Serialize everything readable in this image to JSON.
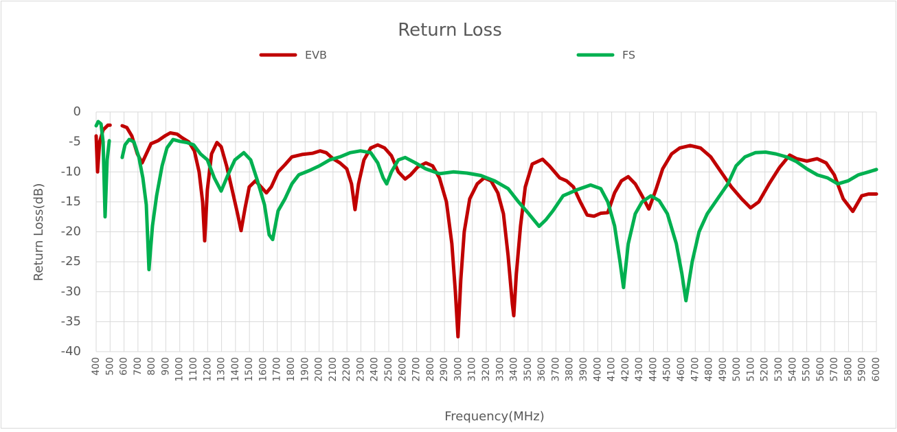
{
  "chart_data": {
    "type": "line",
    "title": "Return Loss",
    "xlabel": "Frequency(MHz)",
    "ylabel": "Return Loss(dB)",
    "legend": "top",
    "grid": true,
    "xlim": [
      400,
      6000
    ],
    "ylim": [
      -40,
      0
    ],
    "xticks": [
      400,
      500,
      600,
      700,
      800,
      900,
      1000,
      1100,
      1200,
      1300,
      1400,
      1500,
      1600,
      1700,
      1800,
      1900,
      2000,
      2100,
      2200,
      2300,
      2400,
      2500,
      2600,
      2700,
      2800,
      2900,
      3000,
      3100,
      3200,
      3300,
      3400,
      3500,
      3600,
      3700,
      3800,
      3900,
      4000,
      4100,
      4200,
      4300,
      4400,
      4500,
      4600,
      4700,
      4800,
      4900,
      5000,
      5100,
      5200,
      5300,
      5400,
      5500,
      5600,
      5700,
      5800,
      5900,
      6000
    ],
    "yticks": [
      0,
      -5,
      -10,
      -15,
      -20,
      -25,
      -30,
      -35,
      -40
    ],
    "series": [
      {
        "name": "EVB",
        "color": "#c00000",
        "x": [
          400,
          410,
          425,
          450,
          485,
          500,
          550,
          587,
          620,
          656,
          696,
          730,
          760,
          794,
          843,
          893,
          932,
          981,
          1016,
          1065,
          1105,
          1139,
          1164,
          1179,
          1198,
          1228,
          1267,
          1297,
          1336,
          1376,
          1415,
          1440,
          1469,
          1499,
          1543,
          1583,
          1622,
          1657,
          1706,
          1755,
          1805,
          1878,
          1952,
          2007,
          2051,
          2100,
          2150,
          2199,
          2233,
          2258,
          2283,
          2322,
          2371,
          2421,
          2470,
          2519,
          2569,
          2618,
          2657,
          2707,
          2766,
          2815,
          2864,
          2914,
          2953,
          2978,
          2997,
          3017,
          3042,
          3081,
          3135,
          3185,
          3234,
          3283,
          3323,
          3357,
          3387,
          3397,
          3416,
          3446,
          3480,
          3530,
          3604,
          3653,
          3727,
          3776,
          3825,
          3875,
          3924,
          3973,
          4022,
          4072,
          4121,
          4170,
          4219,
          4269,
          4318,
          4367,
          4417,
          4466,
          4530,
          4589,
          4663,
          4737,
          4811,
          4885,
          4959,
          5033,
          5097,
          5156,
          5230,
          5304,
          5378,
          5427,
          5501,
          5575,
          5639,
          5698,
          5762,
          5831,
          5895,
          5944,
          6000
        ],
        "values": [
          -4,
          -10,
          -5,
          -3,
          -2.2,
          -2.2,
          null,
          -2.3,
          -2.6,
          -4,
          -7,
          -8.5,
          -7,
          -5.3,
          -4.8,
          -4,
          -3.5,
          -3.7,
          -4.3,
          -5,
          -6.5,
          -10,
          -15,
          -21.5,
          -13,
          -7,
          -5.1,
          -5.8,
          -9,
          -13,
          -17,
          -19.8,
          -16,
          -12.5,
          -11.5,
          -12.5,
          -13.5,
          -12.5,
          -10,
          -8.8,
          -7.5,
          -7.1,
          -6.9,
          -6.5,
          -6.8,
          -7.8,
          -8.5,
          -9.5,
          -12,
          -16.3,
          -12,
          -8,
          -6,
          -5.5,
          -6,
          -7.3,
          -10,
          -11.2,
          -10.5,
          -9.2,
          -8.5,
          -9,
          -11,
          -15,
          -22,
          -30,
          -37.5,
          -28,
          -20,
          -14.5,
          -12,
          -11,
          -11.5,
          -13.5,
          -17,
          -24,
          -32,
          -34,
          -27,
          -19,
          -12.5,
          -8.7,
          -7.9,
          -9,
          -11,
          -11.5,
          -12.5,
          -15,
          -17.2,
          -17.4,
          -16.9,
          -16.8,
          -13.5,
          -11.5,
          -10.8,
          -12,
          -14,
          -16.2,
          -13,
          -9.5,
          -7,
          -6,
          -5.6,
          -6,
          -7.5,
          -10,
          -12.5,
          -14.5,
          -16,
          -15,
          -12,
          -9.3,
          -7.2,
          -7.8,
          -8.2,
          -7.8,
          -8.5,
          -10.5,
          -14.5,
          -16.6,
          -14,
          -13.7,
          -13.7
        ]
      },
      {
        "name": "FS",
        "color": "#00b050",
        "x": [
          400,
          415,
          435,
          450,
          464,
          479,
          494,
          540,
          587,
          607,
          637,
          671,
          706,
          735,
          760,
          779,
          804,
          834,
          873,
          908,
          952,
          1001,
          1051,
          1100,
          1149,
          1198,
          1248,
          1297,
          1346,
          1396,
          1460,
          1509,
          1558,
          1608,
          1642,
          1667,
          1706,
          1755,
          1805,
          1854,
          1928,
          2002,
          2076,
          2150,
          2223,
          2297,
          2371,
          2421,
          2460,
          2485,
          2519,
          2569,
          2618,
          2692,
          2766,
          2864,
          2963,
          3061,
          3160,
          3259,
          3357,
          3431,
          3505,
          3579,
          3628,
          3678,
          3751,
          3850,
          3949,
          4022,
          4072,
          4121,
          4160,
          4185,
          4219,
          4269,
          4318,
          4382,
          4441,
          4500,
          4564,
          4604,
          4633,
          4678,
          4727,
          4786,
          4860,
          4934,
          4993,
          5057,
          5131,
          5205,
          5279,
          5353,
          5427,
          5501,
          5575,
          5649,
          5723,
          5797,
          5871,
          5944,
          6000
        ],
        "values": [
          -2.3,
          -1.6,
          -2,
          -5,
          -17.5,
          -8,
          -4.8,
          null,
          -7.6,
          -5.5,
          -4.6,
          -5,
          -7.5,
          -11,
          -15.5,
          -26.3,
          -19,
          -14,
          -9,
          -6,
          -4.6,
          -4.9,
          -5.1,
          -5.5,
          -7,
          -8,
          -11,
          -13.2,
          -10.5,
          -8,
          -6.8,
          -8,
          -11.5,
          -15.5,
          -20.5,
          -21.3,
          -16.5,
          -14.5,
          -12,
          -10.5,
          -9.8,
          -9,
          -8,
          -7.5,
          -6.8,
          -6.5,
          -6.8,
          -8.5,
          -11,
          -12,
          -10,
          -8,
          -7.6,
          -8.5,
          -9.5,
          -10.3,
          -10,
          -10.2,
          -10.6,
          -11.5,
          -12.8,
          -15,
          -17,
          -19.1,
          -18,
          -16.5,
          -14,
          -13,
          -12.2,
          -12.8,
          -15,
          -19,
          -25,
          -29.3,
          -22,
          -17,
          -15,
          -14,
          -14.8,
          -17,
          -22,
          -27,
          -31.5,
          -25,
          -20,
          -17,
          -14.5,
          -12,
          -9,
          -7.5,
          -6.8,
          -6.7,
          -7,
          -7.5,
          -8.3,
          -9.5,
          -10.5,
          -11,
          -12,
          -11.5,
          -10.5,
          -10,
          -9.6
        ]
      }
    ]
  }
}
